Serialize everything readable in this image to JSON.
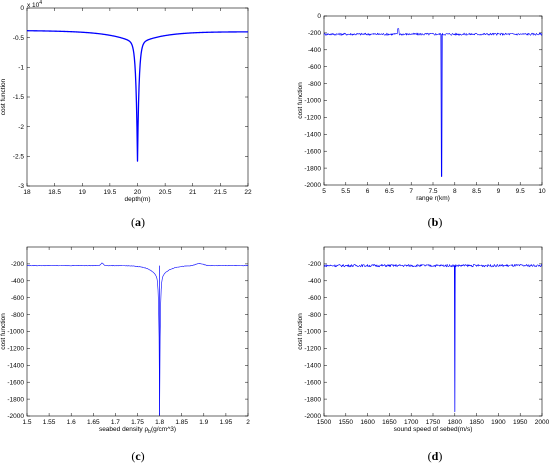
{
  "chart_data": [
    {
      "type": "line",
      "panel_label_open": "(",
      "panel_label_letter": "a",
      "panel_label_close": ")",
      "xlabel": "depth(m)",
      "ylabel": "cost function",
      "exponent_base": "x 10",
      "exponent_power": "4",
      "xlim": [
        18,
        22
      ],
      "ylim": [
        -3,
        0
      ],
      "xticks": [
        "18",
        "18.5",
        "19",
        "19.5",
        "20",
        "20.5",
        "21",
        "21.5",
        "22"
      ],
      "yticks": [
        "0",
        "-0.5",
        "-1",
        "-1.5",
        "-2",
        "-2.5",
        "-3"
      ],
      "line_color": "#0000ff",
      "peak_x": 20.0,
      "peak_y": -2.57,
      "baseline_left": -0.38,
      "baseline_right": -0.4
    },
    {
      "type": "line",
      "panel_label_open": "(",
      "panel_label_letter": "b",
      "panel_label_close": ")",
      "xlabel": "range r(km)",
      "ylabel": "cost function",
      "xlim": [
        5,
        10
      ],
      "ylim": [
        -2000,
        0
      ],
      "xticks": [
        "5",
        "5.5",
        "6",
        "6.5",
        "7",
        "7.5",
        "8",
        "8.5",
        "9",
        "9.5",
        "10"
      ],
      "yticks": [
        "0",
        "-200",
        "-400",
        "-600",
        "-800",
        "-1000",
        "-1200",
        "-1400",
        "-1600",
        "-1800",
        "-2000"
      ],
      "line_color": "#0000ff",
      "peak_x": 7.7,
      "peak_y": -1900,
      "baseline": -215
    },
    {
      "type": "line",
      "panel_label_open": "(",
      "panel_label_letter": "c",
      "panel_label_close": ")",
      "xlabel_main": "seabed density ρ",
      "xlabel_sub": "b",
      "xlabel_unit": "(g/cm^3)",
      "ylabel": "cost function",
      "xlim": [
        1.5,
        2
      ],
      "ylim": [
        -2000,
        0
      ],
      "xticks": [
        "1.5",
        "1.55",
        "1.6",
        "1.65",
        "1.7",
        "1.75",
        "1.8",
        "1.85",
        "1.9",
        "1.95",
        "2"
      ],
      "yticks": [
        "-200",
        "-400",
        "-600",
        "-800",
        "-1000",
        "-1200",
        "-1400",
        "-1600",
        "-1800",
        "-2000"
      ],
      "line_color": "#0000ff",
      "peak_x": 1.8,
      "peak_y": -1990,
      "baseline": -220
    },
    {
      "type": "line",
      "panel_label_open": "(",
      "panel_label_letter": "d",
      "panel_label_close": ")",
      "xlabel": "sound speed of sebed(m/s)",
      "ylabel": "cost function",
      "xlim": [
        1500,
        2000
      ],
      "ylim": [
        -2000,
        0
      ],
      "xticks": [
        "1500",
        "1550",
        "1600",
        "1650",
        "1700",
        "1750",
        "1800",
        "1850",
        "1900",
        "1950",
        "2000"
      ],
      "yticks": [
        "-200",
        "-400",
        "-600",
        "-800",
        "-1000",
        "-1200",
        "-1400",
        "-1600",
        "-1800",
        "-2000"
      ],
      "line_color": "#0000ff",
      "peak_x": 1800,
      "peak_y": -1950,
      "baseline": -220
    }
  ]
}
